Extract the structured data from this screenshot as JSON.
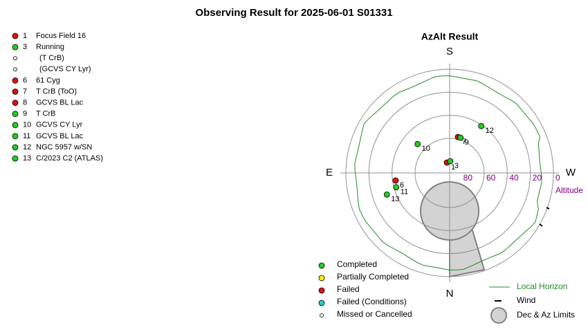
{
  "title": "Observing Result for 2025-06-01  S01331",
  "target_list": [
    {
      "id": "1",
      "name": "Focus Field 16",
      "status": "Failed"
    },
    {
      "id": "3",
      "name": "Running",
      "status": "Completed"
    },
    {
      "name": "(T CrB)",
      "status": "Missed or Cancelled"
    },
    {
      "name": "(GCVS CY Lyr)",
      "status": "Missed or Cancelled"
    },
    {
      "id": "6",
      "name": "61 Cyg",
      "status": "Failed"
    },
    {
      "id": "7",
      "name": "T CrB (ToO)",
      "status": "Failed"
    },
    {
      "id": "8",
      "name": "GCVS BL Lac",
      "status": "Failed"
    },
    {
      "id": "9",
      "name": "T CrB",
      "status": "Completed"
    },
    {
      "id": "10",
      "name": "GCVS CY Lyr",
      "status": "Completed"
    },
    {
      "id": "11",
      "name": "GCVS BL Lac",
      "status": "Completed"
    },
    {
      "id": "12",
      "name": "NGC 5957 w/SN",
      "status": "Completed"
    },
    {
      "id": "13",
      "name": "C/2023 C2 (ATLAS)",
      "status": "Completed"
    }
  ],
  "chart_data": {
    "type": "polar",
    "title": "AzAlt Result",
    "directions": {
      "S": "S",
      "E": "E",
      "W": "W",
      "N": "N"
    },
    "r_label": "Altitude",
    "rlim": [
      90,
      0
    ],
    "rticks": [
      80,
      60,
      40,
      20,
      0
    ],
    "tick_color": "#800080",
    "points": [
      {
        "label": "1",
        "status": "Failed",
        "az": 165,
        "alt": 80.7
      },
      {
        "label": "3",
        "status": "Completed",
        "az": 183,
        "alt": 79.8
      },
      {
        "label": "6",
        "status": "Failed",
        "az": 82,
        "alt": 42.7
      },
      {
        "label": "7",
        "status": "Failed",
        "az": 193,
        "alt": 58
      },
      {
        "label": "9",
        "status": "Completed",
        "az": 197,
        "alt": 58
      },
      {
        "label": "10",
        "status": "Completed",
        "az": 132,
        "alt": 52.6
      },
      {
        "label": "11",
        "status": "Completed",
        "az": 75,
        "alt": 42
      },
      {
        "label": "12",
        "status": "Completed",
        "az": 214,
        "alt": 41
      },
      {
        "label": "13",
        "status": "Completed",
        "az": 71,
        "alt": 32.4
      }
    ],
    "status_legend": [
      {
        "name": "Completed",
        "color": "#22cc22"
      },
      {
        "name": "Partially Completed",
        "color": "#ffee00"
      },
      {
        "name": "Failed",
        "color": "#dd1111"
      },
      {
        "name": "Failed (Conditions)",
        "color": "#22cccc"
      },
      {
        "name": "Missed or Cancelled",
        "color": "#ffffff"
      }
    ],
    "other_legend": [
      "Local Horizon",
      "Wind",
      "Dec & Az Limits"
    ]
  }
}
